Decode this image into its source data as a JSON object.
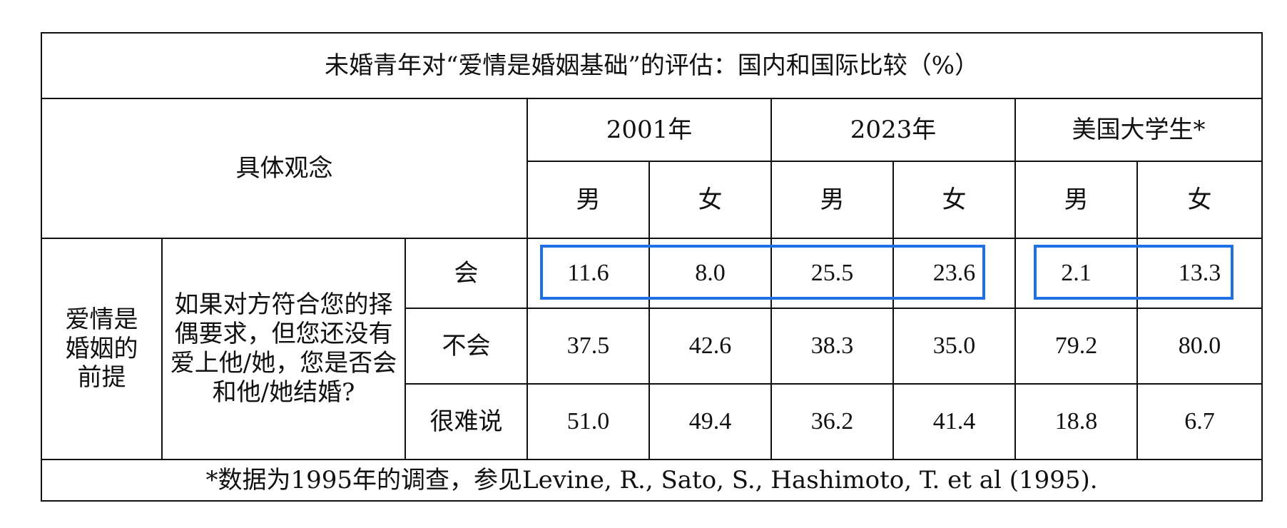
{
  "table": {
    "title": "未婚青年对“爱情是婚姻基础”的评估：国内和国际比较（%）",
    "header": {
      "concept_label": "具体观念",
      "groups": [
        "2001年",
        "2023年",
        "美国大学生*"
      ],
      "sexes": [
        "男",
        "女",
        "男",
        "女",
        "男",
        "女"
      ]
    },
    "topic": "爱情是婚姻的前提",
    "question": "如果对方符合您的择偶要求，但您还没有爱上他/她，您是否会和他/她结婚?",
    "rows": [
      {
        "answer": "会",
        "values": [
          "11.6",
          "8.0",
          "25.5",
          "23.6",
          "2.1",
          "13.3"
        ]
      },
      {
        "answer": "不会",
        "values": [
          "37.5",
          "42.6",
          "38.3",
          "35.0",
          "79.2",
          "80.0"
        ]
      },
      {
        "answer": "很难说",
        "values": [
          "51.0",
          "49.4",
          "36.2",
          "41.4",
          "18.8",
          "6.7"
        ]
      }
    ],
    "footnote": "*数据为1995年的调查，参见Levine, R., Sato, S., Hashimoto, T. et al (1995)."
  },
  "highlight_color": "#1f6fe5"
}
